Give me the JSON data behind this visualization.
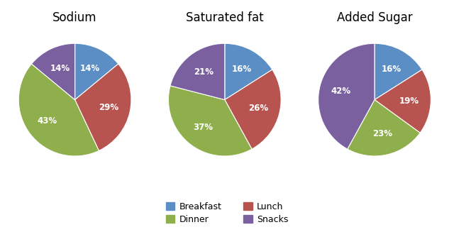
{
  "charts": [
    {
      "title": "Sodium",
      "labels": [
        "Breakfast",
        "Lunch",
        "Dinner",
        "Snacks"
      ],
      "values": [
        14,
        29,
        43,
        14
      ],
      "colors": [
        "#5B8EC5",
        "#B85450",
        "#8EAF4B",
        "#7B60A0"
      ],
      "startangle": 90
    },
    {
      "title": "Saturated fat",
      "labels": [
        "Breakfast",
        "Lunch",
        "Dinner",
        "Snacks"
      ],
      "values": [
        16,
        26,
        37,
        21
      ],
      "colors": [
        "#5B8EC5",
        "#B85450",
        "#8EAF4B",
        "#7B60A0"
      ],
      "startangle": 90
    },
    {
      "title": "Added Sugar",
      "labels": [
        "Breakfast",
        "Lunch",
        "Dinner",
        "Snacks"
      ],
      "values": [
        16,
        19,
        23,
        42
      ],
      "colors": [
        "#5B8EC5",
        "#B85450",
        "#8EAF4B",
        "#7B60A0"
      ],
      "startangle": 90
    }
  ],
  "legend_labels": [
    "Breakfast",
    "Lunch",
    "Dinner",
    "Snacks"
  ],
  "legend_colors": [
    "#5B8EC5",
    "#B85450",
    "#8EAF4B",
    "#7B60A0"
  ],
  "bg_color": "#FFFFFF",
  "text_color": "#FFFFFF",
  "label_fontsize": 8.5,
  "title_fontsize": 12
}
